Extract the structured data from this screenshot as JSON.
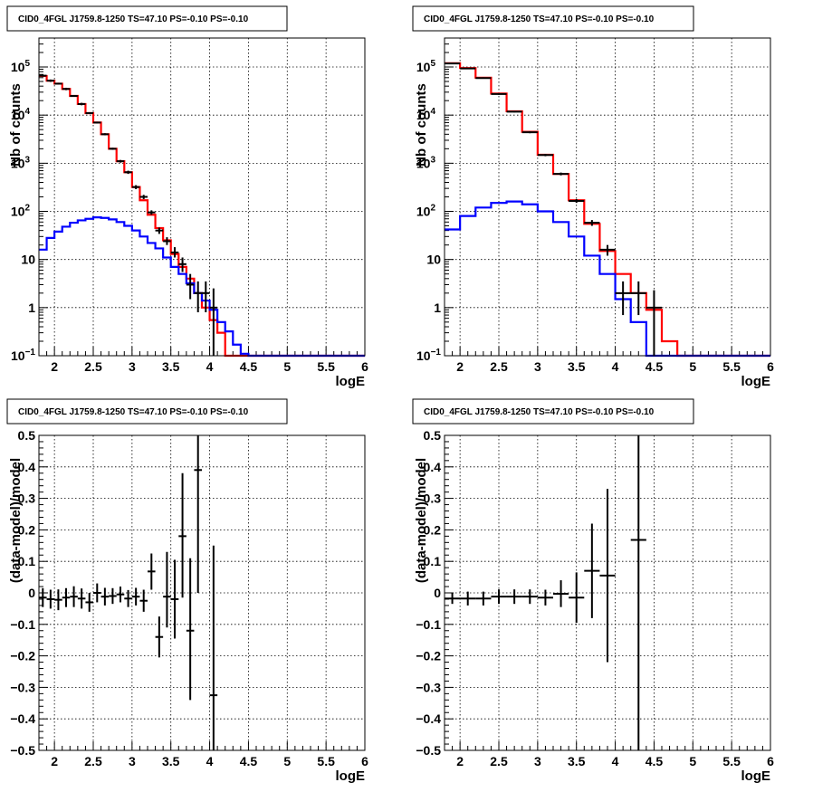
{
  "chart_data": [
    {
      "type": "line",
      "panel": "top-left",
      "title": "CID0_4FGL J1759.8-1250 TS=47.10 PS=-0.10 PS=-0.10",
      "xlabel": "logE",
      "ylabel": "Nb of counts",
      "xlim": [
        1.8,
        6.0
      ],
      "ylim": [
        0.1,
        400000
      ],
      "yscale": "log",
      "grid": true,
      "bin_edges": [
        1.8,
        1.9,
        2.0,
        2.1,
        2.2,
        2.3,
        2.4,
        2.5,
        2.6,
        2.7,
        2.8,
        2.9,
        3.0,
        3.1,
        3.2,
        3.3,
        3.4,
        3.5,
        3.6,
        3.7,
        3.8,
        3.9,
        4.0,
        4.1,
        4.2,
        4.3,
        4.4,
        4.5,
        4.6,
        4.7,
        4.8,
        4.9,
        5.0,
        5.1,
        5.2,
        5.3,
        5.4,
        5.5,
        5.6,
        5.7,
        5.8,
        5.9,
        6.0
      ],
      "series": [
        {
          "color": "#ff0000",
          "style": "step",
          "values": [
            65000,
            52000,
            45000,
            35000,
            25000,
            17000,
            11000,
            7000,
            4000,
            2000,
            1100,
            650,
            320,
            170,
            85,
            45,
            25,
            13,
            7,
            4,
            2,
            1,
            0.55,
            0.3,
            0.1,
            0.1,
            0.1,
            0.1,
            0.1,
            0.1,
            0.1,
            0.1,
            0.1,
            0.1,
            0.1,
            0.1,
            0.1,
            0.1,
            0.1,
            0.1,
            0.1,
            0.1
          ]
        },
        {
          "color": "#0000ff",
          "style": "step",
          "values": [
            16,
            28,
            38,
            48,
            58,
            65,
            70,
            75,
            73,
            68,
            60,
            50,
            40,
            30,
            22,
            17,
            11,
            7,
            5,
            3.2,
            2,
            1.4,
            0.9,
            0.5,
            0.32,
            0.17,
            0.11,
            0.1,
            0.1,
            0.1,
            0.1,
            0.1,
            0.1,
            0.1,
            0.1,
            0.1,
            0.1,
            0.1,
            0.1,
            0.1,
            0.1,
            0.1
          ]
        },
        {
          "color": "#000000",
          "style": "errorbar",
          "points": [
            {
              "x": 1.85,
              "y": 66000,
              "lo": 63000,
              "hi": 69000
            },
            {
              "x": 1.95,
              "y": 52000,
              "lo": 49000,
              "hi": 55000
            },
            {
              "x": 2.05,
              "y": 45000,
              "lo": 43000,
              "hi": 47000
            },
            {
              "x": 2.15,
              "y": 35000,
              "lo": 33000,
              "hi": 37000
            },
            {
              "x": 2.25,
              "y": 25000,
              "lo": 24000,
              "hi": 26000
            },
            {
              "x": 2.35,
              "y": 17000,
              "lo": 16000,
              "hi": 18000
            },
            {
              "x": 2.45,
              "y": 11000,
              "lo": 10500,
              "hi": 11500
            },
            {
              "x": 2.55,
              "y": 7000,
              "lo": 6700,
              "hi": 7300
            },
            {
              "x": 2.65,
              "y": 4000,
              "lo": 3800,
              "hi": 4200
            },
            {
              "x": 2.75,
              "y": 2000,
              "lo": 1900,
              "hi": 2100
            },
            {
              "x": 2.85,
              "y": 1100,
              "lo": 1030,
              "hi": 1170
            },
            {
              "x": 2.95,
              "y": 650,
              "lo": 600,
              "hi": 700
            },
            {
              "x": 3.05,
              "y": 320,
              "lo": 290,
              "hi": 350
            },
            {
              "x": 3.15,
              "y": 200,
              "lo": 180,
              "hi": 220
            },
            {
              "x": 3.25,
              "y": 95,
              "lo": 85,
              "hi": 105
            },
            {
              "x": 3.35,
              "y": 40,
              "lo": 34,
              "hi": 46
            },
            {
              "x": 3.45,
              "y": 24,
              "lo": 20,
              "hi": 29
            },
            {
              "x": 3.55,
              "y": 14,
              "lo": 11,
              "hi": 18
            },
            {
              "x": 3.65,
              "y": 8,
              "lo": 5.5,
              "hi": 11
            },
            {
              "x": 3.75,
              "y": 3,
              "lo": 1.5,
              "hi": 5
            },
            {
              "x": 3.85,
              "y": 2,
              "lo": 0.8,
              "hi": 3.5
            },
            {
              "x": 3.95,
              "y": 2,
              "lo": 0.8,
              "hi": 3.5
            },
            {
              "x": 4.05,
              "y": 1,
              "lo": 0.1,
              "hi": 2.5
            }
          ]
        }
      ]
    },
    {
      "type": "line",
      "panel": "top-right",
      "title": "CID0_4FGL J1759.8-1250 TS=47.10 PS=-0.10 PS=-0.10",
      "xlabel": "logE",
      "ylabel": "Nb of counts",
      "xlim": [
        1.8,
        6.0
      ],
      "ylim": [
        0.1,
        400000
      ],
      "yscale": "log",
      "grid": true,
      "bin_edges": [
        1.8,
        2.0,
        2.2,
        2.4,
        2.6,
        2.8,
        3.0,
        3.2,
        3.4,
        3.6,
        3.8,
        4.0,
        4.2,
        4.4,
        4.6,
        4.8,
        5.0,
        5.2,
        5.4,
        5.6,
        5.8,
        6.0
      ],
      "series": [
        {
          "color": "#ff0000",
          "style": "step",
          "values": [
            120000,
            95000,
            60000,
            28000,
            12000,
            4500,
            1500,
            600,
            170,
            55,
            15,
            5,
            2,
            0.9,
            0.2,
            0.1,
            0.1,
            0.1,
            0.1,
            0.1,
            0.1
          ]
        },
        {
          "color": "#0000ff",
          "style": "step",
          "values": [
            42,
            80,
            120,
            150,
            160,
            140,
            100,
            60,
            30,
            12,
            5,
            1.5,
            0.5,
            0.1,
            0.1,
            0.1,
            0.1,
            0.1,
            0.1,
            0.1,
            0.1
          ]
        },
        {
          "color": "#000000",
          "style": "errorbar",
          "points": [
            {
              "x": 1.9,
              "y": 118000,
              "lo": 116000,
              "hi": 120000
            },
            {
              "x": 2.1,
              "y": 93000,
              "lo": 91000,
              "hi": 95000
            },
            {
              "x": 2.3,
              "y": 59000,
              "lo": 57000,
              "hi": 61000
            },
            {
              "x": 2.5,
              "y": 27500,
              "lo": 26500,
              "hi": 28500
            },
            {
              "x": 2.7,
              "y": 11800,
              "lo": 11400,
              "hi": 12200
            },
            {
              "x": 2.9,
              "y": 4400,
              "lo": 4200,
              "hi": 4600
            },
            {
              "x": 3.1,
              "y": 1480,
              "lo": 1400,
              "hi": 1560
            },
            {
              "x": 3.3,
              "y": 600,
              "lo": 560,
              "hi": 640
            },
            {
              "x": 3.5,
              "y": 165,
              "lo": 150,
              "hi": 180
            },
            {
              "x": 3.7,
              "y": 58,
              "lo": 50,
              "hi": 66
            },
            {
              "x": 3.9,
              "y": 16,
              "lo": 12,
              "hi": 20
            },
            {
              "x": 4.1,
              "y": 2,
              "lo": 0.7,
              "hi": 3.5
            },
            {
              "x": 4.3,
              "y": 2,
              "lo": 0.7,
              "hi": 3.5
            },
            {
              "x": 4.5,
              "y": 1,
              "lo": 0.1,
              "hi": 2.3
            }
          ]
        }
      ]
    },
    {
      "type": "scatter",
      "panel": "bottom-left",
      "title": "CID0_4FGL J1759.8-1250 TS=47.10 PS=-0.10 PS=-0.10",
      "xlabel": "logE",
      "ylabel": "(data-model)/model",
      "xlim": [
        1.8,
        6.0
      ],
      "ylim": [
        -0.5,
        0.5
      ],
      "yscale": "linear",
      "grid": true,
      "series": [
        {
          "color": "#000000",
          "style": "errorbar",
          "halfwidth": 0.05,
          "points": [
            {
              "x": 1.85,
              "y": -0.015,
              "lo": -0.045,
              "hi": 0.015
            },
            {
              "x": 1.95,
              "y": -0.02,
              "lo": -0.05,
              "hi": 0.01
            },
            {
              "x": 2.05,
              "y": -0.022,
              "lo": -0.055,
              "hi": 0.011
            },
            {
              "x": 2.15,
              "y": -0.015,
              "lo": -0.045,
              "hi": 0.015
            },
            {
              "x": 2.25,
              "y": -0.012,
              "lo": -0.045,
              "hi": 0.021
            },
            {
              "x": 2.35,
              "y": -0.018,
              "lo": -0.05,
              "hi": 0.014
            },
            {
              "x": 2.45,
              "y": -0.03,
              "lo": -0.06,
              "hi": 0.0
            },
            {
              "x": 2.55,
              "y": 0.0,
              "lo": -0.03,
              "hi": 0.03
            },
            {
              "x": 2.65,
              "y": -0.012,
              "lo": -0.04,
              "hi": 0.016
            },
            {
              "x": 2.75,
              "y": -0.01,
              "lo": -0.035,
              "hi": 0.015
            },
            {
              "x": 2.85,
              "y": -0.005,
              "lo": -0.03,
              "hi": 0.02
            },
            {
              "x": 2.95,
              "y": -0.018,
              "lo": -0.045,
              "hi": 0.009
            },
            {
              "x": 3.05,
              "y": -0.012,
              "lo": -0.04,
              "hi": 0.016
            },
            {
              "x": 3.15,
              "y": -0.025,
              "lo": -0.06,
              "hi": 0.01
            },
            {
              "x": 3.25,
              "y": 0.068,
              "lo": 0.01,
              "hi": 0.125
            },
            {
              "x": 3.35,
              "y": -0.14,
              "lo": -0.205,
              "hi": -0.075
            },
            {
              "x": 3.45,
              "y": -0.012,
              "lo": -0.11,
              "hi": 0.13
            },
            {
              "x": 3.55,
              "y": -0.02,
              "lo": -0.145,
              "hi": 0.105
            },
            {
              "x": 3.65,
              "y": 0.18,
              "lo": -0.015,
              "hi": 0.38
            },
            {
              "x": 3.75,
              "y": -0.12,
              "lo": -0.34,
              "hi": 0.11
            },
            {
              "x": 3.85,
              "y": 0.39,
              "lo": 0.0,
              "hi": 0.78
            },
            {
              "x": 4.05,
              "y": -0.325,
              "lo": -0.8,
              "hi": 0.15
            }
          ]
        }
      ]
    },
    {
      "type": "scatter",
      "panel": "bottom-right",
      "title": "CID0_4FGL J1759.8-1250 TS=47.10 PS=-0.10 PS=-0.10",
      "xlabel": "logE",
      "ylabel": "(data-model)/model",
      "xlim": [
        1.8,
        6.0
      ],
      "ylim": [
        -0.5,
        0.5
      ],
      "yscale": "linear",
      "grid": true,
      "series": [
        {
          "color": "#000000",
          "style": "errorbar",
          "halfwidth": 0.1,
          "points": [
            {
              "x": 1.9,
              "y": -0.018,
              "lo": -0.035,
              "hi": -0.001
            },
            {
              "x": 2.1,
              "y": -0.018,
              "lo": -0.04,
              "hi": 0.004
            },
            {
              "x": 2.3,
              "y": -0.018,
              "lo": -0.04,
              "hi": 0.004
            },
            {
              "x": 2.5,
              "y": -0.012,
              "lo": -0.035,
              "hi": 0.011
            },
            {
              "x": 2.7,
              "y": -0.012,
              "lo": -0.035,
              "hi": 0.011
            },
            {
              "x": 2.9,
              "y": -0.012,
              "lo": -0.035,
              "hi": 0.011
            },
            {
              "x": 3.1,
              "y": -0.015,
              "lo": -0.04,
              "hi": 0.01
            },
            {
              "x": 3.3,
              "y": -0.003,
              "lo": -0.045,
              "hi": 0.04
            },
            {
              "x": 3.5,
              "y": -0.015,
              "lo": -0.095,
              "hi": 0.065
            },
            {
              "x": 3.7,
              "y": 0.07,
              "lo": -0.08,
              "hi": 0.22
            },
            {
              "x": 3.9,
              "y": 0.055,
              "lo": -0.22,
              "hi": 0.33
            },
            {
              "x": 4.3,
              "y": 0.168,
              "lo": -0.8,
              "hi": 1.0
            }
          ]
        }
      ]
    }
  ]
}
